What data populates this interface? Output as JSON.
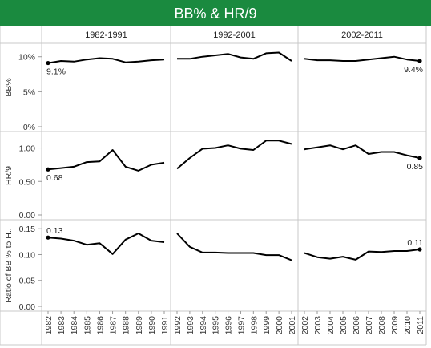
{
  "chart_data": {
    "type": "line",
    "title": "BB% & HR/9",
    "accent_color": "#1a8a3f",
    "line_color": "#000000",
    "grid": false,
    "periods": [
      {
        "label": "1982-1991",
        "years": [
          "1982",
          "1983",
          "1984",
          "1985",
          "1986",
          "1987",
          "1988",
          "1989",
          "1990",
          "1991"
        ]
      },
      {
        "label": "1992-2001",
        "years": [
          "1992",
          "1993",
          "1994",
          "1995",
          "1996",
          "1997",
          "1998",
          "1999",
          "2000",
          "2001"
        ]
      },
      {
        "label": "2002-2011",
        "years": [
          "2002",
          "2003",
          "2004",
          "2005",
          "2006",
          "2007",
          "2008",
          "2009",
          "2010",
          "2011"
        ]
      }
    ],
    "measures": [
      {
        "ylabel": "BB%",
        "ylim": [
          0,
          0.11
        ],
        "ticks": [
          0,
          0.05,
          0.1
        ],
        "tick_labels": [
          "0%",
          "5%",
          "10%"
        ],
        "values": [
          [
            0.091,
            0.094,
            0.093,
            0.096,
            0.098,
            0.097,
            0.092,
            0.093,
            0.095,
            0.096
          ],
          [
            0.097,
            0.097,
            0.1,
            0.102,
            0.104,
            0.099,
            0.097,
            0.105,
            0.106,
            0.094
          ],
          [
            0.097,
            0.095,
            0.095,
            0.094,
            0.094,
            0.096,
            0.098,
            0.1,
            0.096,
            0.094
          ]
        ],
        "labels": [
          {
            "period": 0,
            "index": 0,
            "text": "9.1%",
            "pos": "below"
          },
          {
            "period": 2,
            "index": 9,
            "text": "9.4%",
            "pos": "below"
          }
        ]
      },
      {
        "ylabel": "HR/9",
        "ylim": [
          0,
          1.15
        ],
        "ticks": [
          0,
          0.5,
          1.0
        ],
        "tick_labels": [
          "0.00",
          "0.50",
          "1.00"
        ],
        "values": [
          [
            0.68,
            0.7,
            0.72,
            0.79,
            0.8,
            0.97,
            0.72,
            0.66,
            0.75,
            0.78
          ],
          [
            0.69,
            0.85,
            0.99,
            1.0,
            1.04,
            0.99,
            0.97,
            1.11,
            1.11,
            1.06
          ],
          [
            0.98,
            1.01,
            1.04,
            0.98,
            1.04,
            0.91,
            0.94,
            0.94,
            0.89,
            0.85
          ]
        ],
        "labels": [
          {
            "period": 0,
            "index": 0,
            "text": "0.68",
            "pos": "below"
          },
          {
            "period": 2,
            "index": 9,
            "text": "0.85",
            "pos": "below"
          }
        ]
      },
      {
        "ylabel": "Ratio of BB % to H..",
        "ylim": [
          0,
          0.155
        ],
        "ticks": [
          0,
          0.05,
          0.1,
          0.15
        ],
        "tick_labels": [
          "0.00",
          "0.05",
          "0.10",
          "0.15"
        ],
        "values": [
          [
            0.133,
            0.131,
            0.127,
            0.119,
            0.122,
            0.101,
            0.129,
            0.141,
            0.127,
            0.124
          ],
          [
            0.141,
            0.115,
            0.104,
            0.104,
            0.103,
            0.103,
            0.103,
            0.099,
            0.099,
            0.089
          ],
          [
            0.103,
            0.095,
            0.092,
            0.096,
            0.09,
            0.106,
            0.105,
            0.107,
            0.107,
            0.11
          ]
        ],
        "labels": [
          {
            "period": 0,
            "index": 0,
            "text": "0.13",
            "pos": "above"
          },
          {
            "period": 2,
            "index": 9,
            "text": "0.11",
            "pos": "above"
          }
        ]
      }
    ]
  }
}
